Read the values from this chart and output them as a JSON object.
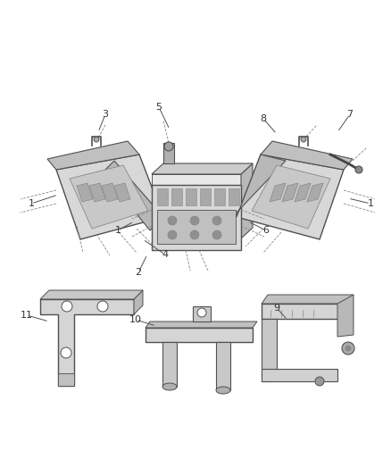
{
  "bg_color": "#ffffff",
  "lc": "#505050",
  "lc2": "#888888",
  "figsize": [
    4.38,
    5.33
  ],
  "dpi": 100,
  "xlim": [
    0,
    438
  ],
  "ylim": [
    0,
    533
  ]
}
